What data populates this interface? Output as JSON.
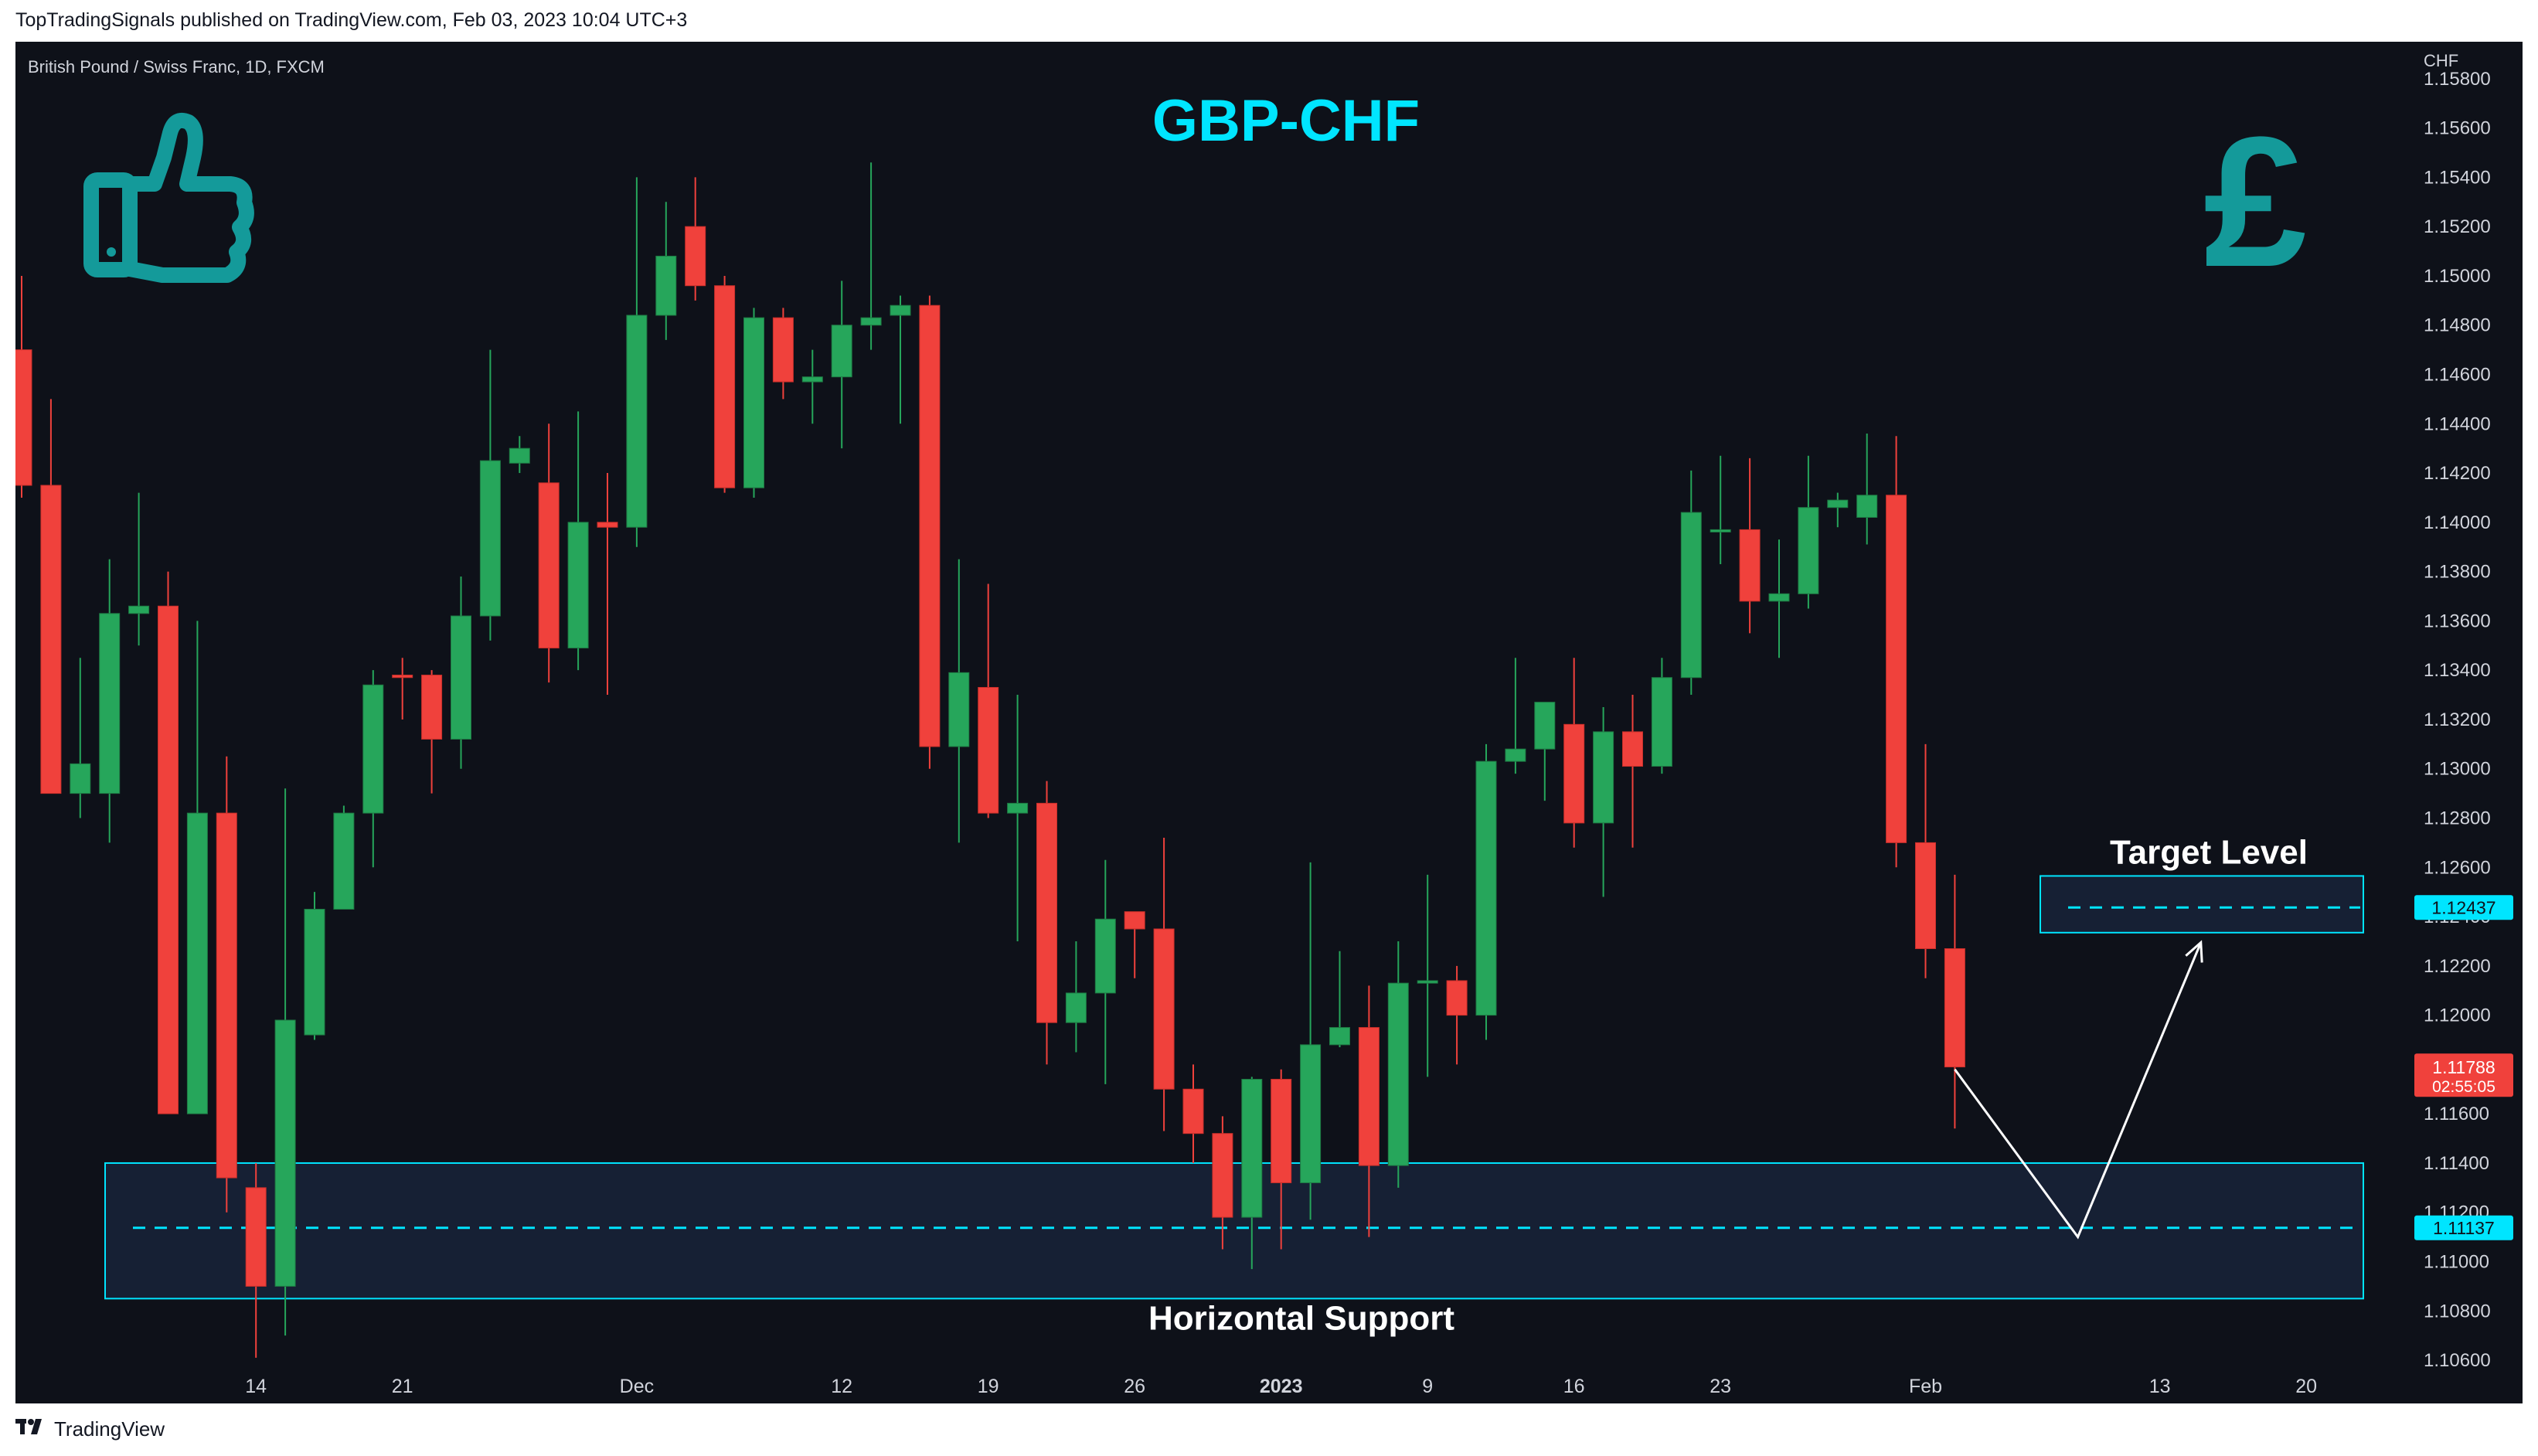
{
  "header": {
    "published": "TopTradingSignals published on TradingView.com, Feb 03, 2023 10:04 UTC+3"
  },
  "symbol_info": "British Pound / Swiss Franc, 1D, FXCM",
  "brand": "TradingView",
  "icons": [
    "thumbs-up-icon",
    "pound-sign-icon"
  ],
  "colors": {
    "up": "#26a65b",
    "down": "#f0413c",
    "accent": "#00e5ff",
    "background": "#0e1119",
    "zone": "#17233a"
  },
  "chart_data": {
    "type": "candlestick",
    "title": "GBP-CHF",
    "currency_label": "CHF",
    "ylim": [
      1.1055,
      1.1595
    ],
    "y_ticks": [
      "1.15800",
      "1.15600",
      "1.15400",
      "1.15200",
      "1.15000",
      "1.14800",
      "1.14600",
      "1.14400",
      "1.14200",
      "1.14000",
      "1.13800",
      "1.13600",
      "1.13400",
      "1.13200",
      "1.13000",
      "1.12800",
      "1.12600",
      "1.12400",
      "1.12200",
      "1.12000",
      "1.11800",
      "1.11600",
      "1.11400",
      "1.11200",
      "1.11000",
      "1.10800",
      "1.10600"
    ],
    "x_ticks": [
      {
        "label": "14",
        "index": 8,
        "bold": false
      },
      {
        "label": "21",
        "index": 13,
        "bold": false
      },
      {
        "label": "Dec",
        "index": 21,
        "bold": false
      },
      {
        "label": "12",
        "index": 28,
        "bold": false
      },
      {
        "label": "19",
        "index": 33,
        "bold": false
      },
      {
        "label": "26",
        "index": 38,
        "bold": false
      },
      {
        "label": "2023",
        "index": 43,
        "bold": true
      },
      {
        "label": "9",
        "index": 48,
        "bold": false
      },
      {
        "label": "16",
        "index": 53,
        "bold": false
      },
      {
        "label": "23",
        "index": 58,
        "bold": false
      },
      {
        "label": "Feb",
        "index": 65,
        "bold": false
      },
      {
        "label": "13",
        "index": 73,
        "bold": false
      },
      {
        "label": "20",
        "index": 78,
        "bold": false
      }
    ],
    "candles": [
      {
        "o": 1.147,
        "h": 1.15,
        "l": 1.141,
        "c": 1.1415
      },
      {
        "o": 1.1415,
        "h": 1.145,
        "l": 1.129,
        "c": 1.129
      },
      {
        "o": 1.129,
        "h": 1.1345,
        "l": 1.128,
        "c": 1.1302
      },
      {
        "o": 1.129,
        "h": 1.1385,
        "l": 1.127,
        "c": 1.1363
      },
      {
        "o": 1.1363,
        "h": 1.1412,
        "l": 1.135,
        "c": 1.1366
      },
      {
        "o": 1.1366,
        "h": 1.138,
        "l": 1.116,
        "c": 1.116
      },
      {
        "o": 1.116,
        "h": 1.136,
        "l": 1.116,
        "c": 1.1282
      },
      {
        "o": 1.1282,
        "h": 1.1305,
        "l": 1.112,
        "c": 1.1134
      },
      {
        "o": 1.113,
        "h": 1.114,
        "l": 1.1061,
        "c": 1.109
      },
      {
        "o": 1.109,
        "h": 1.1292,
        "l": 1.107,
        "c": 1.1198
      },
      {
        "o": 1.1192,
        "h": 1.125,
        "l": 1.119,
        "c": 1.1243
      },
      {
        "o": 1.1243,
        "h": 1.1285,
        "l": 1.1243,
        "c": 1.1282
      },
      {
        "o": 1.1282,
        "h": 1.134,
        "l": 1.126,
        "c": 1.1334
      },
      {
        "o": 1.1338,
        "h": 1.1345,
        "l": 1.132,
        "c": 1.1337
      },
      {
        "o": 1.1338,
        "h": 1.134,
        "l": 1.129,
        "c": 1.1312
      },
      {
        "o": 1.1312,
        "h": 1.1378,
        "l": 1.13,
        "c": 1.1362
      },
      {
        "o": 1.1362,
        "h": 1.147,
        "l": 1.1352,
        "c": 1.1425
      },
      {
        "o": 1.1424,
        "h": 1.1435,
        "l": 1.142,
        "c": 1.143
      },
      {
        "o": 1.1416,
        "h": 1.144,
        "l": 1.1335,
        "c": 1.1349
      },
      {
        "o": 1.1349,
        "h": 1.1445,
        "l": 1.134,
        "c": 1.14
      },
      {
        "o": 1.14,
        "h": 1.142,
        "l": 1.133,
        "c": 1.1398
      },
      {
        "o": 1.1398,
        "h": 1.154,
        "l": 1.139,
        "c": 1.1484
      },
      {
        "o": 1.1484,
        "h": 1.153,
        "l": 1.1474,
        "c": 1.1508
      },
      {
        "o": 1.152,
        "h": 1.154,
        "l": 1.149,
        "c": 1.1496
      },
      {
        "o": 1.1496,
        "h": 1.15,
        "l": 1.1412,
        "c": 1.1414
      },
      {
        "o": 1.1414,
        "h": 1.1487,
        "l": 1.141,
        "c": 1.1483
      },
      {
        "o": 1.1483,
        "h": 1.1487,
        "l": 1.145,
        "c": 1.1457
      },
      {
        "o": 1.1457,
        "h": 1.147,
        "l": 1.144,
        "c": 1.1459
      },
      {
        "o": 1.1459,
        "h": 1.1498,
        "l": 1.143,
        "c": 1.148
      },
      {
        "o": 1.148,
        "h": 1.1546,
        "l": 1.147,
        "c": 1.1483
      },
      {
        "o": 1.1484,
        "h": 1.1492,
        "l": 1.144,
        "c": 1.1488
      },
      {
        "o": 1.1488,
        "h": 1.1492,
        "l": 1.13,
        "c": 1.1309
      },
      {
        "o": 1.1309,
        "h": 1.1385,
        "l": 1.127,
        "c": 1.1339
      },
      {
        "o": 1.1333,
        "h": 1.1375,
        "l": 1.128,
        "c": 1.1282
      },
      {
        "o": 1.1282,
        "h": 1.133,
        "l": 1.123,
        "c": 1.1286
      },
      {
        "o": 1.1286,
        "h": 1.1295,
        "l": 1.118,
        "c": 1.1197
      },
      {
        "o": 1.1197,
        "h": 1.123,
        "l": 1.1185,
        "c": 1.1209
      },
      {
        "o": 1.1209,
        "h": 1.1263,
        "l": 1.1172,
        "c": 1.1239
      },
      {
        "o": 1.1242,
        "h": 1.124,
        "l": 1.1215,
        "c": 1.1235
      },
      {
        "o": 1.1235,
        "h": 1.1272,
        "l": 1.1153,
        "c": 1.117
      },
      {
        "o": 1.117,
        "h": 1.118,
        "l": 1.114,
        "c": 1.1152
      },
      {
        "o": 1.1152,
        "h": 1.1159,
        "l": 1.1105,
        "c": 1.1118
      },
      {
        "o": 1.1118,
        "h": 1.1175,
        "l": 1.1097,
        "c": 1.1174
      },
      {
        "o": 1.1174,
        "h": 1.1178,
        "l": 1.1105,
        "c": 1.1132
      },
      {
        "o": 1.1132,
        "h": 1.1262,
        "l": 1.1117,
        "c": 1.1188
      },
      {
        "o": 1.1188,
        "h": 1.1226,
        "l": 1.1187,
        "c": 1.1195
      },
      {
        "o": 1.1195,
        "h": 1.1212,
        "l": 1.111,
        "c": 1.1139
      },
      {
        "o": 1.1139,
        "h": 1.123,
        "l": 1.113,
        "c": 1.1213
      },
      {
        "o": 1.1213,
        "h": 1.1257,
        "l": 1.1175,
        "c": 1.1214
      },
      {
        "o": 1.1214,
        "h": 1.122,
        "l": 1.118,
        "c": 1.12
      },
      {
        "o": 1.12,
        "h": 1.131,
        "l": 1.119,
        "c": 1.1303
      },
      {
        "o": 1.1303,
        "h": 1.1345,
        "l": 1.1298,
        "c": 1.1308
      },
      {
        "o": 1.1308,
        "h": 1.1327,
        "l": 1.1287,
        "c": 1.1327
      },
      {
        "o": 1.1318,
        "h": 1.1345,
        "l": 1.1268,
        "c": 1.1278
      },
      {
        "o": 1.1278,
        "h": 1.1325,
        "l": 1.1248,
        "c": 1.1315
      },
      {
        "o": 1.1315,
        "h": 1.133,
        "l": 1.1268,
        "c": 1.1301
      },
      {
        "o": 1.1301,
        "h": 1.1345,
        "l": 1.1298,
        "c": 1.1337
      },
      {
        "o": 1.1337,
        "h": 1.1421,
        "l": 1.133,
        "c": 1.1404
      },
      {
        "o": 1.1397,
        "h": 1.1427,
        "l": 1.1383,
        "c": 1.1397
      },
      {
        "o": 1.1397,
        "h": 1.1426,
        "l": 1.1355,
        "c": 1.1368
      },
      {
        "o": 1.1368,
        "h": 1.1393,
        "l": 1.1345,
        "c": 1.1371
      },
      {
        "o": 1.1371,
        "h": 1.1427,
        "l": 1.1365,
        "c": 1.1406
      },
      {
        "o": 1.1406,
        "h": 1.1412,
        "l": 1.1398,
        "c": 1.1409
      },
      {
        "o": 1.1402,
        "h": 1.1436,
        "l": 1.1391,
        "c": 1.1411
      },
      {
        "o": 1.1411,
        "h": 1.1435,
        "l": 1.126,
        "c": 1.127
      },
      {
        "o": 1.127,
        "h": 1.131,
        "l": 1.1215,
        "c": 1.1227
      },
      {
        "o": 1.1227,
        "h": 1.1257,
        "l": 1.1154,
        "c": 1.1179
      }
    ],
    "support_zone": {
      "top": 1.114,
      "bottom": 1.1085,
      "level": 1.11137,
      "label": "Horizontal Support"
    },
    "target_zone": {
      "top": 1.12565,
      "bottom": 1.12335,
      "level": 1.12437,
      "label": "Target Level"
    },
    "projection_path": [
      {
        "index": 66.0,
        "price": 1.1178
      },
      {
        "index": 70.2,
        "price": 1.111
      },
      {
        "index": 74.4,
        "price": 1.12295
      }
    ],
    "price_labels": [
      {
        "value": "1.12437",
        "kind": "target"
      },
      {
        "value": "1.11137",
        "kind": "support"
      },
      {
        "value": "1.11788",
        "sub": "02:55:05",
        "kind": "last"
      }
    ]
  }
}
